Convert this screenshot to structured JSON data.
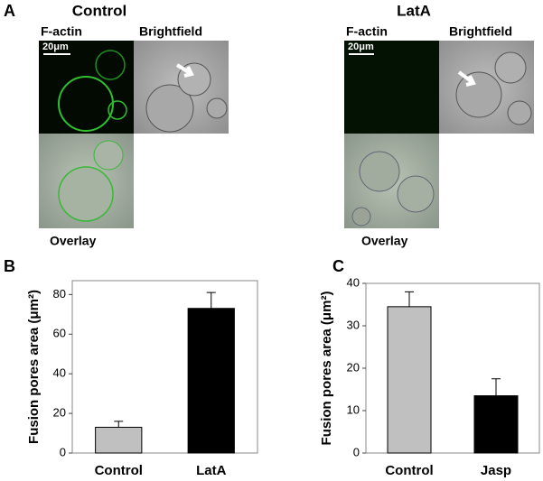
{
  "figure": {
    "panels": [
      "A",
      "B",
      "C"
    ],
    "groups": [
      {
        "title": "Control",
        "channels": [
          "F-actin",
          "Brightfield"
        ],
        "overlay": "Overlay",
        "scale_bar": "20μm"
      },
      {
        "title": "LatA",
        "channels": [
          "F-actin",
          "Brightfield"
        ],
        "overlay": "Overlay",
        "scale_bar": "20μm"
      }
    ]
  },
  "chart_data": [
    {
      "type": "bar",
      "ylabel": "Fusion pores area (μm²)",
      "categories": [
        "Control",
        "LatA"
      ],
      "values": [
        13,
        73
      ],
      "errors": [
        3,
        8
      ],
      "colors": [
        "#c0c0c0",
        "#000000"
      ],
      "ylim": [
        0,
        87
      ],
      "yticks": [
        0,
        20,
        40,
        60,
        80
      ]
    },
    {
      "type": "bar",
      "ylabel": "Fusion pores area (μm²)",
      "categories": [
        "Control",
        "Jasp"
      ],
      "values": [
        34.5,
        13.5
      ],
      "errors": [
        3.5,
        4
      ],
      "colors": [
        "#c0c0c0",
        "#000000"
      ],
      "ylim": [
        0,
        40
      ],
      "yticks": [
        0,
        10,
        20,
        30,
        40
      ]
    }
  ]
}
